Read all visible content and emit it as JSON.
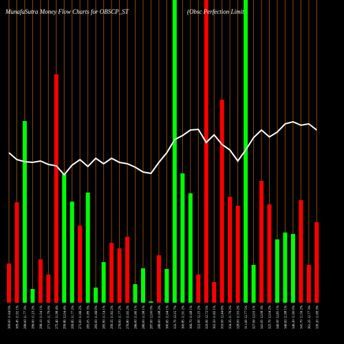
{
  "chart_data": {
    "type": "bar",
    "title": "MunafaSutra  Money Flow  Charts for OBSCP_ST",
    "subtitle": "(Obsc Perfection  Limit",
    "categories": [
      "309.00 11.64 0%",
      "309.45 11.92 1%",
      "298.00 11.77 3%",
      "296.00 11.23 2%",
      "298.10 11.94 1%",
      "271.05 11.79 0%",
      "275.40 11.98 4%",
      "299.80 12.04 4%",
      "299.85 11.77 2%",
      "273.00 11.66 2%",
      "283.05 11.89 3%",
      "283.00 11.66 0%",
      "283.90 11.54 1%",
      "299.35 11.82 2%",
      "276.00 11.77 2%",
      "276.80 11.65 2%",
      "266.00 11.60 1%",
      "286.00 11.98 1%",
      "287.00 12.00 0%",
      "288.00 11.68 2%",
      "300.65 11.64 1%",
      "333.70 12.25 7%",
      "300.85 11.91 2%",
      "306.70 11.68 1%",
      "322.00 12.25 2%",
      "320.00 12.72 5%",
      "302.50 11.82 1%",
      "350.00 12.44 6%",
      "334.35 11.76 2%",
      "328.00 11.93 2%",
      "311.00 12.77 5%",
      "327.00 12.03 1%",
      "341.05 12.08 3%",
      "325.70 12.04 2%",
      "340.00 12.85 1%",
      "346.00 11.98 1%",
      "346.30 11.90 0%",
      "341.70 11.56 2%",
      "361.25 12.77 3%",
      "330.20 11.69 3%"
    ],
    "values": [
      57,
      146,
      264,
      20,
      63,
      41,
      332,
      187,
      147,
      112,
      160,
      22,
      59,
      87,
      79,
      96,
      27,
      50,
      2,
      69,
      49,
      440,
      188,
      159,
      41,
      440,
      30,
      295,
      154,
      141,
      440,
      55,
      177,
      143,
      92,
      102,
      100,
      149,
      55,
      117
    ],
    "colors": [
      "red",
      "red",
      "green",
      "green",
      "red",
      "red",
      "red",
      "green",
      "green",
      "red",
      "green",
      "green",
      "green",
      "red",
      "red",
      "red",
      "green",
      "green",
      "green",
      "red",
      "green",
      "green",
      "green",
      "green",
      "red",
      "red",
      "red",
      "red",
      "red",
      "red",
      "green",
      "green",
      "red",
      "red",
      "green",
      "green",
      "green",
      "red",
      "red",
      "red"
    ],
    "line_values": [
      218,
      208,
      205,
      204,
      206,
      201,
      199,
      186,
      200,
      208,
      198,
      210,
      202,
      210,
      204,
      202,
      197,
      190,
      188,
      204,
      218,
      237,
      243,
      251,
      252,
      233,
      244,
      230,
      222,
      206,
      222,
      240,
      251,
      241,
      248,
      260,
      263,
      258,
      260,
      251
    ],
    "ylim": [
      0,
      440
    ],
    "grid_color": "#8b4a14",
    "line_color": "#ffffff"
  }
}
